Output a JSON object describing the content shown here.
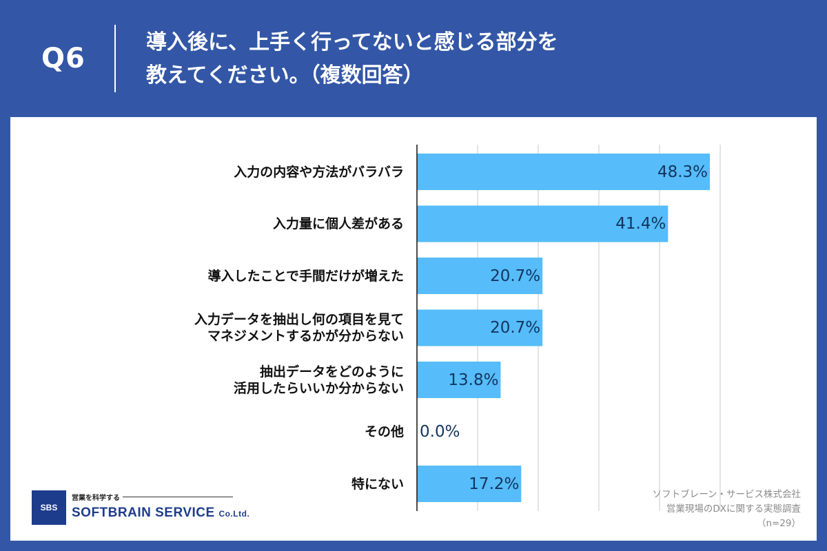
{
  "header": {
    "question_number": "Q6",
    "title_line1": "導入後に、上手く行ってないと感じる部分を",
    "title_line2": "教えてください。（複数回答）"
  },
  "chart_data": {
    "type": "bar",
    "orientation": "horizontal",
    "categories": [
      "入力の内容や方法がバラバラ",
      "入力量に個人差がある",
      "導入したことで手間だけが増えた",
      "入力データを抽出し何の項目を見て\nマネジメントするかが分からない",
      "抽出データをどのように\n活用したらいいか分からない",
      "その他",
      "特にない"
    ],
    "values": [
      48.3,
      41.4,
      20.7,
      20.7,
      13.8,
      0.0,
      17.2
    ],
    "value_labels": [
      "48.3%",
      "41.4%",
      "20.7%",
      "20.7%",
      "13.8%",
      "0.0%",
      "17.2%"
    ],
    "xlim": [
      0,
      50
    ],
    "grid": true,
    "bar_color": "#56bcfa",
    "label_color": "#12355e"
  },
  "source": {
    "line1": "ソフトブレーン・サービス株式会社",
    "line2": "営業現場のDXに関する実態調査",
    "line3": "（n=29）"
  },
  "logo": {
    "badge": "SBS",
    "tagline": "営業を科学する",
    "company": "SOFTBRAIN SERVICE",
    "suffix": "Co.Ltd."
  },
  "colors": {
    "background": "#3357a6",
    "panel": "#ffffff",
    "bar": "#56bcfa"
  }
}
